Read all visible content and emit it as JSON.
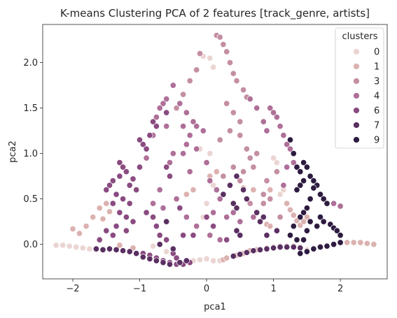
{
  "chart_data": {
    "type": "scatter",
    "title": "K-means Clustering PCA of 2 features [track_genre, artists]",
    "xlabel": "pca1",
    "ylabel": "pca2",
    "xlim": [
      -2.45,
      2.7
    ],
    "ylim": [
      -0.38,
      2.42
    ],
    "xticks": [
      -2,
      -1,
      0,
      1,
      2
    ],
    "yticks": [
      0.0,
      0.5,
      1.0,
      1.5,
      2.0
    ],
    "xtick_labels": [
      "−2",
      "−1",
      "0",
      "1",
      "2"
    ],
    "ytick_labels": [
      "0.0",
      "0.5",
      "1.0",
      "1.5",
      "2.0"
    ],
    "legend": {
      "title": "clusters",
      "placement": "top-right",
      "entries": [
        {
          "label": "0",
          "color": "#ebd5d2"
        },
        {
          "label": "1",
          "color": "#dcb2b0"
        },
        {
          "label": "3",
          "color": "#c48ea3"
        },
        {
          "label": "4",
          "color": "#ae6f98"
        },
        {
          "label": "6",
          "color": "#8a4b81"
        },
        {
          "label": "7",
          "color": "#5a2f62"
        },
        {
          "label": "9",
          "color": "#2d1b40"
        }
      ]
    },
    "series": [
      {
        "name": "0",
        "color": "#ebd5d2",
        "points": [
          [
            -2.25,
            -0.01
          ],
          [
            -2.15,
            -0.01
          ],
          [
            -2.05,
            -0.02
          ],
          [
            -1.95,
            -0.03
          ],
          [
            -1.85,
            -0.04
          ],
          [
            -1.75,
            -0.05
          ],
          [
            -1.65,
            -0.06
          ],
          [
            -0.8,
            -0.02
          ],
          [
            -0.6,
            -0.08
          ],
          [
            -0.2,
            -0.18
          ],
          [
            -0.1,
            -0.17
          ],
          [
            0.0,
            -0.16
          ],
          [
            0.1,
            -0.18
          ],
          [
            0.2,
            -0.18
          ],
          [
            -0.05,
            2.07
          ],
          [
            0.05,
            2.05
          ],
          [
            0.1,
            1.95
          ],
          [
            -0.1,
            1.05
          ],
          [
            0.05,
            1.0
          ],
          [
            0.1,
            0.65
          ],
          [
            0.0,
            0.45
          ],
          [
            -0.05,
            0.3
          ],
          [
            1.0,
            0.95
          ],
          [
            1.05,
            0.9
          ],
          [
            1.1,
            0.55
          ],
          [
            1.15,
            0.6
          ],
          [
            1.5,
            -0.06
          ],
          [
            1.6,
            -0.04
          ],
          [
            1.7,
            -0.02
          ],
          [
            1.8,
            -0.01
          ],
          [
            2.0,
            0.02
          ]
        ]
      },
      {
        "name": "1",
        "color": "#dcb2b0",
        "points": [
          [
            -2.0,
            0.17
          ],
          [
            -1.9,
            0.12
          ],
          [
            -1.8,
            0.2
          ],
          [
            -1.7,
            0.3
          ],
          [
            -1.6,
            0.4
          ],
          [
            -1.5,
            0.45
          ],
          [
            -1.45,
            0.36
          ],
          [
            -1.55,
            0.28
          ],
          [
            -1.3,
            -0.01
          ],
          [
            -1.1,
            -0.04
          ],
          [
            0.25,
            -0.17
          ],
          [
            0.3,
            -0.15
          ],
          [
            0.45,
            -0.12
          ],
          [
            0.55,
            -0.1
          ],
          [
            0.65,
            -0.07
          ],
          [
            0.75,
            -0.06
          ],
          [
            0.9,
            -0.04
          ],
          [
            1.0,
            -0.03
          ],
          [
            1.1,
            -0.02
          ],
          [
            1.2,
            -0.02
          ],
          [
            1.3,
            -0.02
          ],
          [
            1.4,
            -0.03
          ],
          [
            1.2,
            0.45
          ],
          [
            1.25,
            0.38
          ],
          [
            1.3,
            0.32
          ],
          [
            1.35,
            0.26
          ],
          [
            1.4,
            0.21
          ],
          [
            1.45,
            0.25
          ],
          [
            1.5,
            0.3
          ],
          [
            0.9,
            0.22
          ],
          [
            0.95,
            0.2
          ],
          [
            2.1,
            0.02
          ],
          [
            2.2,
            0.02
          ],
          [
            2.3,
            0.02
          ],
          [
            2.4,
            0.01
          ],
          [
            2.5,
            0.0
          ],
          [
            0.55,
            0.62
          ],
          [
            0.7,
            0.6
          ],
          [
            0.95,
            0.6
          ],
          [
            -0.3,
            0.55
          ],
          [
            -0.2,
            0.6
          ],
          [
            0.05,
            0.75
          ],
          [
            0.15,
            0.8
          ]
        ]
      },
      {
        "name": "3",
        "color": "#c48ea3",
        "points": [
          [
            0.15,
            2.3
          ],
          [
            0.2,
            2.28
          ],
          [
            0.25,
            2.2
          ],
          [
            0.3,
            2.12
          ],
          [
            0.35,
            2.0
          ],
          [
            0.4,
            1.88
          ],
          [
            0.45,
            1.8
          ],
          [
            0.55,
            1.7
          ],
          [
            0.6,
            1.62
          ],
          [
            0.3,
            1.55
          ],
          [
            0.4,
            1.45
          ],
          [
            0.5,
            1.35
          ],
          [
            0.35,
            1.25
          ],
          [
            0.2,
            1.15
          ],
          [
            0.5,
            1.2
          ],
          [
            0.6,
            1.05
          ],
          [
            0.4,
            0.85
          ],
          [
            0.25,
            0.75
          ],
          [
            0.5,
            0.7
          ],
          [
            0.65,
            0.45
          ],
          [
            0.7,
            0.85
          ],
          [
            0.85,
            0.55
          ],
          [
            0.85,
            0.45
          ],
          [
            0.9,
            0.7
          ],
          [
            1.05,
            0.8
          ],
          [
            0.75,
            1.0
          ],
          [
            0.65,
            0.95
          ],
          [
            1.1,
            0.3
          ],
          [
            0.95,
            0.5
          ],
          [
            0.55,
            0.8
          ],
          [
            -0.1,
            2.1
          ],
          [
            -0.15,
            1.92
          ],
          [
            -0.25,
            1.8
          ],
          [
            -0.35,
            1.65
          ],
          [
            -0.45,
            1.5
          ]
        ]
      },
      {
        "name": "4",
        "color": "#ae6f98",
        "points": [
          [
            -0.5,
            1.75
          ],
          [
            -0.6,
            1.6
          ],
          [
            -0.65,
            1.55
          ],
          [
            -0.7,
            1.5
          ],
          [
            -0.75,
            1.4
          ],
          [
            -0.4,
            1.55
          ],
          [
            -0.3,
            1.45
          ],
          [
            -0.2,
            1.35
          ],
          [
            -0.35,
            1.3
          ],
          [
            -0.15,
            1.3
          ],
          [
            -0.05,
            1.25
          ],
          [
            -0.25,
            1.2
          ],
          [
            -0.3,
            1.1
          ],
          [
            -0.35,
            1.0
          ],
          [
            -0.15,
            1.05
          ],
          [
            0.0,
            0.9
          ],
          [
            0.05,
            0.7
          ],
          [
            0.15,
            0.6
          ],
          [
            0.2,
            0.5
          ],
          [
            0.1,
            0.35
          ],
          [
            0.3,
            0.3
          ],
          [
            0.4,
            0.35
          ],
          [
            0.5,
            0.25
          ],
          [
            0.65,
            1.6
          ],
          [
            0.75,
            1.5
          ],
          [
            0.85,
            1.35
          ],
          [
            0.9,
            1.25
          ],
          [
            0.95,
            1.5
          ],
          [
            1.0,
            1.45
          ],
          [
            1.05,
            1.4
          ],
          [
            1.1,
            1.3
          ],
          [
            1.15,
            1.2
          ],
          [
            1.2,
            1.1
          ],
          [
            1.25,
            1.05
          ],
          [
            1.2,
            0.85
          ],
          [
            1.3,
            0.9
          ],
          [
            1.15,
            0.65
          ],
          [
            0.7,
            0.3
          ],
          [
            -0.6,
            1.3
          ],
          [
            -0.8,
            1.2
          ],
          [
            -0.9,
            0.95
          ],
          [
            -0.5,
            1.0
          ],
          [
            -0.55,
            0.9
          ],
          [
            -0.7,
            0.6
          ],
          [
            -0.8,
            0.45
          ],
          [
            -0.65,
            0.4
          ],
          [
            -0.45,
            0.5
          ],
          [
            -0.25,
            0.8
          ],
          [
            -0.3,
            0.3
          ],
          [
            -0.15,
            0.2
          ],
          [
            0.05,
            0.1
          ],
          [
            0.2,
            0.05
          ],
          [
            1.9,
            0.45
          ],
          [
            2.0,
            0.42
          ]
        ]
      },
      {
        "name": "6",
        "color": "#8a4b81",
        "points": [
          [
            -1.3,
            0.9
          ],
          [
            -1.25,
            0.85
          ],
          [
            -1.2,
            0.8
          ],
          [
            -1.3,
            0.75
          ],
          [
            -1.4,
            0.7
          ],
          [
            -1.45,
            0.65
          ],
          [
            -1.5,
            0.6
          ],
          [
            -1.35,
            0.55
          ],
          [
            -1.25,
            0.5
          ],
          [
            -1.15,
            0.45
          ],
          [
            -1.05,
            0.6
          ],
          [
            -1.1,
            0.72
          ],
          [
            -1.15,
            0.65
          ],
          [
            -1.4,
            0.45
          ],
          [
            -1.3,
            0.35
          ],
          [
            -1.2,
            0.3
          ],
          [
            -1.1,
            0.25
          ],
          [
            -1.35,
            0.2
          ],
          [
            -1.5,
            0.15
          ],
          [
            -1.6,
            0.05
          ],
          [
            -1.4,
            0.1
          ],
          [
            -1.2,
            0.15
          ],
          [
            -1.0,
            1.15
          ],
          [
            -0.95,
            1.1
          ],
          [
            -0.9,
            1.05
          ],
          [
            -1.0,
            0.85
          ],
          [
            -0.85,
            1.2
          ],
          [
            -0.75,
            1.3
          ],
          [
            -0.8,
            1.35
          ],
          [
            -0.6,
            1.45
          ],
          [
            -0.9,
            0.35
          ],
          [
            -0.8,
            0.3
          ],
          [
            -0.75,
            0.2
          ],
          [
            -0.7,
            0.1
          ],
          [
            -0.6,
            0.05
          ],
          [
            -0.5,
            -0.1
          ],
          [
            -0.45,
            -0.15
          ],
          [
            -0.95,
            -0.1
          ],
          [
            -0.85,
            -0.12
          ],
          [
            -0.75,
            -0.15
          ],
          [
            -0.65,
            -0.18
          ],
          [
            -0.55,
            -0.2
          ],
          [
            -0.45,
            -0.22
          ],
          [
            -0.35,
            -0.22
          ],
          [
            -0.25,
            -0.2
          ],
          [
            -0.6,
            0.85
          ],
          [
            -0.55,
            0.75
          ],
          [
            -0.4,
            0.4
          ],
          [
            -0.35,
            0.1
          ],
          [
            -0.2,
            0.1
          ],
          [
            0.0,
            0.3
          ],
          [
            0.1,
            0.2
          ],
          [
            0.3,
            0.05
          ]
        ]
      },
      {
        "name": "7",
        "color": "#5a2f62",
        "points": [
          [
            -1.65,
            -0.05
          ],
          [
            -1.55,
            -0.06
          ],
          [
            -1.45,
            -0.05
          ],
          [
            -1.35,
            -0.06
          ],
          [
            -1.25,
            -0.07
          ],
          [
            -1.15,
            -0.08
          ],
          [
            -1.05,
            -0.1
          ],
          [
            -0.95,
            -0.14
          ],
          [
            -0.85,
            -0.16
          ],
          [
            -0.75,
            -0.18
          ],
          [
            -0.65,
            -0.2
          ],
          [
            -0.55,
            -0.22
          ],
          [
            -0.4,
            -0.2
          ],
          [
            -0.3,
            -0.18
          ],
          [
            0.4,
            -0.13
          ],
          [
            0.5,
            -0.11
          ],
          [
            0.6,
            -0.09
          ],
          [
            0.7,
            -0.07
          ],
          [
            0.8,
            -0.06
          ],
          [
            0.9,
            -0.05
          ],
          [
            1.0,
            -0.04
          ],
          [
            1.1,
            -0.03
          ],
          [
            1.2,
            -0.03
          ],
          [
            1.3,
            -0.03
          ],
          [
            1.4,
            -0.04
          ],
          [
            0.25,
            0.55
          ],
          [
            0.35,
            0.65
          ],
          [
            0.45,
            0.75
          ],
          [
            0.55,
            0.6
          ],
          [
            0.4,
            0.45
          ],
          [
            0.45,
            0.4
          ],
          [
            0.6,
            0.5
          ],
          [
            0.75,
            0.35
          ],
          [
            0.85,
            0.3
          ],
          [
            0.45,
            0.15
          ],
          [
            0.5,
            0.1
          ],
          [
            0.8,
            0.25
          ],
          [
            0.9,
            0.1
          ],
          [
            1.05,
            0.15
          ],
          [
            -0.6,
            0.25
          ],
          [
            -0.7,
            0.0
          ],
          [
            -0.5,
            -0.05
          ]
        ]
      },
      {
        "name": "9",
        "color": "#2d1b40",
        "points": [
          [
            1.25,
            1.15
          ],
          [
            1.3,
            1.0
          ],
          [
            1.35,
            0.85
          ],
          [
            1.4,
            0.8
          ],
          [
            1.45,
            0.9
          ],
          [
            1.5,
            0.85
          ],
          [
            1.55,
            0.75
          ],
          [
            1.6,
            0.7
          ],
          [
            1.65,
            0.65
          ],
          [
            1.45,
            0.7
          ],
          [
            1.4,
            0.65
          ],
          [
            1.35,
            0.6
          ],
          [
            1.7,
            0.55
          ],
          [
            1.75,
            0.5
          ],
          [
            1.8,
            0.45
          ],
          [
            1.5,
            0.4
          ],
          [
            1.45,
            0.35
          ],
          [
            1.4,
            0.3
          ],
          [
            1.55,
            0.25
          ],
          [
            1.65,
            0.2
          ],
          [
            1.7,
            0.3
          ],
          [
            1.75,
            0.25
          ],
          [
            1.85,
            0.22
          ],
          [
            1.9,
            0.18
          ],
          [
            1.95,
            0.15
          ],
          [
            2.0,
            0.1
          ],
          [
            1.4,
            -0.1
          ],
          [
            1.5,
            -0.08
          ],
          [
            1.6,
            -0.05
          ],
          [
            1.7,
            -0.03
          ],
          [
            1.8,
            -0.02
          ],
          [
            1.9,
            0.0
          ],
          [
            2.0,
            0.02
          ],
          [
            1.35,
            0.05
          ],
          [
            1.25,
            0.1
          ],
          [
            1.3,
            0.2
          ],
          [
            1.55,
            0.5
          ],
          [
            1.6,
            0.62
          ],
          [
            1.5,
            0.15
          ],
          [
            1.45,
            0.05
          ]
        ]
      }
    ]
  }
}
